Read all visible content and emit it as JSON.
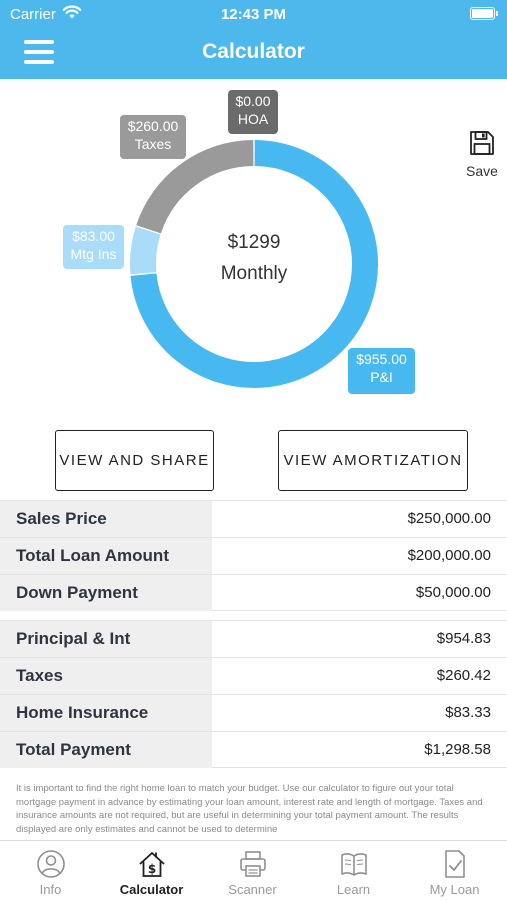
{
  "status_bar": {
    "carrier": "Carrier",
    "time": "12:43 PM"
  },
  "header": {
    "title": "Calculator"
  },
  "chart": {
    "center_amount": "$1299",
    "center_label": "Monthly",
    "segments": [
      {
        "name": "P&I",
        "value": 955.0,
        "display_value": "$955.00",
        "color": "#48b9f0"
      },
      {
        "name": "Mtg Ins",
        "value": 83.0,
        "display_value": "$83.00",
        "color": "#a9dcf8"
      },
      {
        "name": "Taxes",
        "value": 260.0,
        "display_value": "$260.00",
        "color": "#9a9a9a"
      },
      {
        "name": "HOA",
        "value": 0.0,
        "display_value": "$0.00",
        "color": "#6b6b6b"
      }
    ]
  },
  "chart_data": {
    "type": "pie",
    "categories": [
      "P&I",
      "Mtg Ins",
      "Taxes",
      "HOA"
    ],
    "values": [
      955.0,
      83.0,
      260.0,
      0.0
    ],
    "title": ""
  },
  "save": {
    "label": "Save"
  },
  "buttons": {
    "share": "VIEW AND SHARE",
    "amortization": "VIEW AMORTIZATION"
  },
  "loan_table": [
    {
      "label": "Sales Price",
      "value": "$250,000.00"
    },
    {
      "label": "Total Loan Amount",
      "value": "$200,000.00"
    },
    {
      "label": "Down Payment",
      "value": "$50,000.00"
    }
  ],
  "payment_table": [
    {
      "label": "Principal & Int",
      "value": "$954.83"
    },
    {
      "label": "Taxes",
      "value": "$260.42"
    },
    {
      "label": "Home Insurance",
      "value": "$83.33"
    },
    {
      "label": "Total Payment",
      "value": "$1,298.58"
    }
  ],
  "disclaimer": "It is important to find the right home loan to match your budget. Use our calculator to figure out your total mortgage payment in advance by estimating your loan amount, interest rate and length of mortgage. Taxes and insurance amounts are not required, but are useful in determining your total payment amount. The results displayed are only estimates and cannot be used to determine",
  "tabs": [
    {
      "label": "Info",
      "icon": "person-circle-icon",
      "active": false
    },
    {
      "label": "Calculator",
      "icon": "house-dollar-icon",
      "active": true
    },
    {
      "label": "Scanner",
      "icon": "printer-icon",
      "active": false
    },
    {
      "label": "Learn",
      "icon": "open-book-icon",
      "active": false
    },
    {
      "label": "My Loan",
      "icon": "document-check-icon",
      "active": false
    }
  ]
}
